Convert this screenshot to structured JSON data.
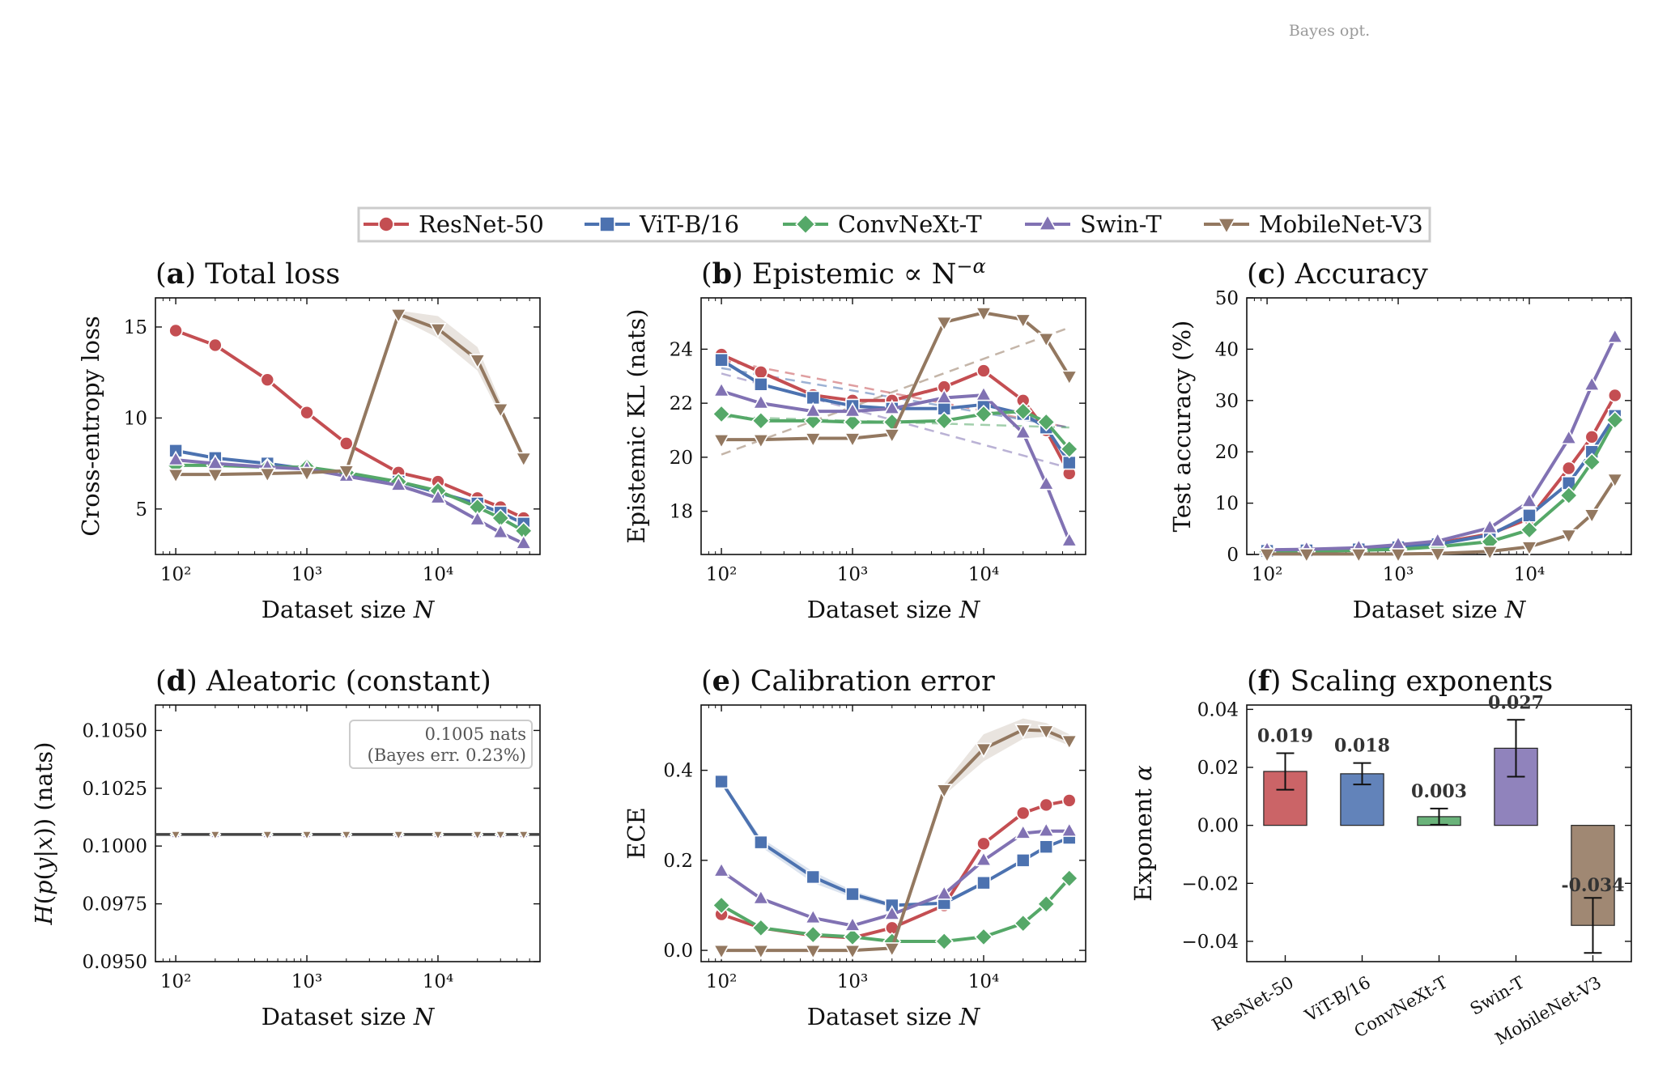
{
  "header_note": "Bayes opt.",
  "colors": {
    "ResNet-50": "#c44e52",
    "ViT-B/16": "#4c72b0",
    "ConvNeXt-T": "#55a868",
    "Swin-T": "#8172b3",
    "MobileNet-V3": "#937860"
  },
  "legend": {
    "entries": [
      {
        "label": "ResNet-50",
        "marker": "circle"
      },
      {
        "label": "ViT-B/16",
        "marker": "square"
      },
      {
        "label": "ConvNeXt-T",
        "marker": "diamond"
      },
      {
        "label": "Swin-T",
        "marker": "triangle-up"
      },
      {
        "label": "MobileNet-V3",
        "marker": "triangle-down"
      }
    ]
  },
  "chart_data": [
    {
      "id": "a",
      "type": "line",
      "title_letter": "a",
      "title": "Total loss",
      "xlabel": "Dataset size N",
      "ylabel": "Cross-entropy loss",
      "xscale": "log",
      "xlim": [
        70,
        60000
      ],
      "ylim": [
        2.5,
        16.6
      ],
      "yticks": [
        5,
        10,
        15
      ],
      "x": [
        100,
        200,
        500,
        1000,
        2000,
        5000,
        10000,
        20000,
        30000,
        45000
      ],
      "series": [
        {
          "name": "ResNet-50",
          "values": [
            14.8,
            14.0,
            12.1,
            10.3,
            8.6,
            7.0,
            6.5,
            5.6,
            5.1,
            4.5
          ]
        },
        {
          "name": "ViT-B/16",
          "values": [
            8.2,
            7.8,
            7.5,
            7.2,
            6.9,
            6.5,
            5.9,
            5.3,
            4.8,
            4.2
          ]
        },
        {
          "name": "ConvNeXt-T",
          "values": [
            7.4,
            7.4,
            7.3,
            7.3,
            7.0,
            6.5,
            6.0,
            5.1,
            4.5,
            3.8
          ]
        },
        {
          "name": "Swin-T",
          "values": [
            7.7,
            7.5,
            7.3,
            7.2,
            6.8,
            6.3,
            5.6,
            4.4,
            3.7,
            3.1
          ]
        },
        {
          "name": "MobileNet-V3",
          "values": [
            6.9,
            6.9,
            6.95,
            7.0,
            7.1,
            15.7,
            14.9,
            13.2,
            10.5,
            7.8
          ]
        }
      ],
      "bands": [
        {
          "name": "MobileNet-V3",
          "x": [
            5000,
            10000,
            20000,
            30000
          ],
          "lower": [
            15.5,
            14.4,
            12.6,
            10.1
          ],
          "upper": [
            15.9,
            15.6,
            13.9,
            10.9
          ]
        }
      ]
    },
    {
      "id": "b",
      "type": "line",
      "title_letter": "b",
      "title": "Epistemic ∝ N^−α",
      "xlabel": "Dataset size N",
      "ylabel": "Epistemic KL (nats)",
      "xscale": "log",
      "xlim": [
        70,
        60000
      ],
      "ylim": [
        16.4,
        25.9
      ],
      "yticks": [
        18,
        20,
        22,
        24
      ],
      "x": [
        100,
        200,
        500,
        1000,
        2000,
        5000,
        10000,
        20000,
        30000,
        45000
      ],
      "series": [
        {
          "name": "ResNet-50",
          "values": [
            23.8,
            23.15,
            22.3,
            22.1,
            22.1,
            22.6,
            23.2,
            22.1,
            21.0,
            19.4
          ]
        },
        {
          "name": "ViT-B/16",
          "values": [
            23.6,
            22.7,
            22.2,
            21.9,
            21.8,
            21.8,
            21.95,
            21.6,
            21.1,
            19.8
          ]
        },
        {
          "name": "ConvNeXt-T",
          "values": [
            21.6,
            21.35,
            21.35,
            21.3,
            21.3,
            21.35,
            21.6,
            21.7,
            21.3,
            20.3
          ]
        },
        {
          "name": "Swin-T",
          "values": [
            22.45,
            22.0,
            21.7,
            21.7,
            21.8,
            22.2,
            22.3,
            20.9,
            19.0,
            16.9
          ]
        },
        {
          "name": "MobileNet-V3",
          "values": [
            20.65,
            20.65,
            20.7,
            20.7,
            20.85,
            25.0,
            25.35,
            25.1,
            24.4,
            23.0
          ]
        }
      ],
      "fits": [
        {
          "name": "ResNet-50",
          "x": [
            100,
            45000
          ],
          "values": [
            23.6,
            21.1
          ]
        },
        {
          "name": "ViT-B/16",
          "x": [
            100,
            45000
          ],
          "values": [
            23.3,
            21.1
          ]
        },
        {
          "name": "ConvNeXt-T",
          "x": [
            100,
            45000
          ],
          "values": [
            21.5,
            21.1
          ]
        },
        {
          "name": "Swin-T",
          "x": [
            100,
            45000
          ],
          "values": [
            23.1,
            19.6
          ]
        },
        {
          "name": "MobileNet-V3",
          "x": [
            100,
            45000
          ],
          "values": [
            20.1,
            24.8
          ]
        }
      ]
    },
    {
      "id": "c",
      "type": "line",
      "title_letter": "c",
      "title": "Accuracy",
      "xlabel": "Dataset size N",
      "ylabel": "Test accuracy (%)",
      "xscale": "log",
      "xlim": [
        70,
        60000
      ],
      "ylim": [
        0,
        50
      ],
      "yticks": [
        0,
        10,
        20,
        30,
        40,
        50
      ],
      "x": [
        100,
        200,
        500,
        1000,
        2000,
        5000,
        10000,
        20000,
        30000,
        45000
      ],
      "series": [
        {
          "name": "ResNet-50",
          "values": [
            0.8,
            0.9,
            1.0,
            1.5,
            2.2,
            4.0,
            7.0,
            16.8,
            22.9,
            31.0
          ]
        },
        {
          "name": "ViT-B/16",
          "values": [
            0.7,
            0.8,
            1.0,
            1.4,
            2.0,
            3.8,
            7.6,
            13.9,
            20.0,
            27.0
          ]
        },
        {
          "name": "ConvNeXt-T",
          "values": [
            0.5,
            0.6,
            0.8,
            1.0,
            1.5,
            2.5,
            4.8,
            11.5,
            18.0,
            26.2
          ]
        },
        {
          "name": "Swin-T",
          "values": [
            0.9,
            1.0,
            1.3,
            1.9,
            2.6,
            5.2,
            10.3,
            22.6,
            33.0,
            42.3
          ]
        },
        {
          "name": "MobileNet-V3",
          "values": [
            0.1,
            0.1,
            0.1,
            0.1,
            0.2,
            0.6,
            1.5,
            3.8,
            7.8,
            14.7
          ]
        }
      ]
    },
    {
      "id": "d",
      "type": "line",
      "title_letter": "d",
      "title": "Aleatoric (constant)",
      "xlabel": "Dataset size N",
      "ylabel": "H(p(y|x)) (nats)",
      "xscale": "log",
      "xlim": [
        70,
        60000
      ],
      "ylim": [
        0.095,
        0.1061
      ],
      "yticks": [
        0.095,
        0.0975,
        0.1,
        0.1025,
        0.105
      ],
      "ytick_labels": [
        "0.0950",
        "0.0975",
        "0.1000",
        "0.1025",
        "0.1050"
      ],
      "x": [
        100,
        200,
        500,
        1000,
        2000,
        5000,
        10000,
        20000,
        30000,
        45000
      ],
      "series": [
        {
          "name": "ResNet-50",
          "values": [
            0.1005,
            0.1005,
            0.1005,
            0.1005,
            0.1005,
            0.1005,
            0.1005,
            0.1005,
            0.1005,
            0.1005
          ]
        },
        {
          "name": "ViT-B/16",
          "values": [
            0.1005,
            0.1005,
            0.1005,
            0.1005,
            0.1005,
            0.1005,
            0.1005,
            0.1005,
            0.1005,
            0.1005
          ]
        },
        {
          "name": "ConvNeXt-T",
          "values": [
            0.1005,
            0.1005,
            0.1005,
            0.1005,
            0.1005,
            0.1005,
            0.1005,
            0.1005,
            0.1005,
            0.1005
          ]
        },
        {
          "name": "Swin-T",
          "values": [
            0.1005,
            0.1005,
            0.1005,
            0.1005,
            0.1005,
            0.1005,
            0.1005,
            0.1005,
            0.1005,
            0.1005
          ]
        },
        {
          "name": "MobileNet-V3",
          "values": [
            0.1005,
            0.1005,
            0.1005,
            0.1005,
            0.1005,
            0.1005,
            0.1005,
            0.1005,
            0.1005,
            0.1005
          ]
        }
      ],
      "reference_line": 0.1005,
      "annotation": [
        "0.1005 nats",
        "(Bayes err. 0.23%)"
      ]
    },
    {
      "id": "e",
      "type": "line",
      "title_letter": "e",
      "title": "Calibration error",
      "xlabel": "Dataset size N",
      "ylabel": "ECE",
      "xscale": "log",
      "xlim": [
        70,
        60000
      ],
      "ylim": [
        -0.025,
        0.545
      ],
      "yticks": [
        0,
        0.2,
        0.4
      ],
      "ytick_labels": [
        "0.0",
        "0.2",
        "0.4"
      ],
      "x": [
        100,
        200,
        500,
        1000,
        2000,
        5000,
        10000,
        20000,
        30000,
        45000
      ],
      "series": [
        {
          "name": "ResNet-50",
          "values": [
            0.08,
            0.05,
            0.033,
            0.028,
            0.05,
            0.1,
            0.237,
            0.305,
            0.323,
            0.333
          ]
        },
        {
          "name": "ViT-B/16",
          "values": [
            0.375,
            0.24,
            0.163,
            0.125,
            0.1,
            0.105,
            0.15,
            0.2,
            0.23,
            0.25
          ]
        },
        {
          "name": "ConvNeXt-T",
          "values": [
            0.1,
            0.05,
            0.035,
            0.03,
            0.02,
            0.02,
            0.03,
            0.06,
            0.103,
            0.16
          ]
        },
        {
          "name": "Swin-T",
          "values": [
            0.176,
            0.115,
            0.072,
            0.055,
            0.08,
            0.125,
            0.2,
            0.26,
            0.265,
            0.265
          ]
        },
        {
          "name": "MobileNet-V3",
          "values": [
            0.0,
            0.0,
            0.0,
            0.0,
            0.005,
            0.357,
            0.448,
            0.49,
            0.488,
            0.466
          ]
        }
      ],
      "bands": [
        {
          "name": "MobileNet-V3",
          "x": [
            5000,
            10000,
            20000,
            30000,
            45000
          ],
          "lower": [
            0.345,
            0.42,
            0.47,
            0.475,
            0.455
          ],
          "upper": [
            0.37,
            0.48,
            0.515,
            0.505,
            0.48
          ]
        },
        {
          "name": "ViT-B/16",
          "x": [
            100,
            200,
            500,
            1000,
            2000
          ],
          "lower": [
            0.37,
            0.23,
            0.15,
            0.117,
            0.095
          ],
          "upper": [
            0.38,
            0.25,
            0.175,
            0.133,
            0.105
          ]
        }
      ]
    },
    {
      "id": "f",
      "type": "bar",
      "title_letter": "f",
      "title": "Scaling exponents",
      "xlabel": "",
      "ylabel": "Exponent α",
      "ylim": [
        -0.047,
        0.0415
      ],
      "yticks": [
        -0.04,
        -0.02,
        0,
        0.02,
        0.04
      ],
      "ytick_labels": [
        "−0.04",
        "−0.02",
        "0.00",
        "0.02",
        "0.04"
      ],
      "categories": [
        "ResNet-50",
        "ViT-B/16",
        "ConvNeXt-T",
        "Swin-T",
        "MobileNet-V3"
      ],
      "values": [
        0.0186,
        0.0178,
        0.003,
        0.0266,
        -0.0345
      ],
      "errors": [
        0.0063,
        0.0037,
        0.0028,
        0.0098,
        0.0095
      ],
      "value_labels": [
        "0.019",
        "0.018",
        "0.003",
        "0.027",
        "-0.034"
      ]
    }
  ]
}
